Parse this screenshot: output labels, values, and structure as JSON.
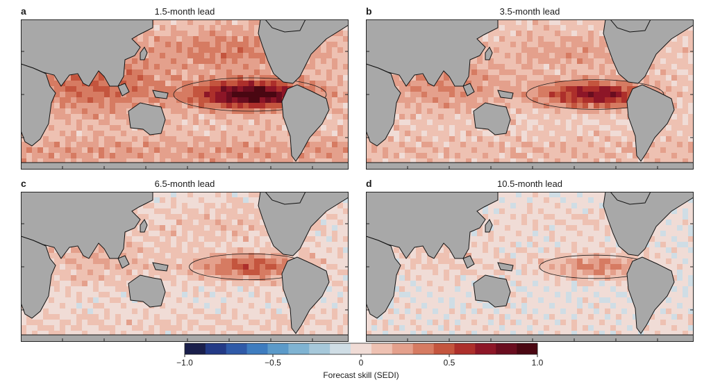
{
  "figure": {
    "panels": [
      {
        "letter": "a",
        "title": "1.5-month lead",
        "intensity": 1.0
      },
      {
        "letter": "b",
        "title": "3.5-month lead",
        "intensity": 0.78
      },
      {
        "letter": "c",
        "title": "6.5-month lead",
        "intensity": 0.55
      },
      {
        "letter": "d",
        "title": "10.5-month lead",
        "intensity": 0.4
      }
    ]
  },
  "chart_data": {
    "type": "heatmap",
    "colorbar": {
      "label": "Forecast skill (SEDI)",
      "min": -1.0,
      "max": 1.0,
      "ticks": [
        -1.0,
        -0.5,
        0,
        0.5,
        1.0
      ],
      "tick_labels": [
        "−1.0",
        "−0.5",
        "0",
        "0.5",
        "1.0"
      ],
      "colors": [
        "#1a1f4b",
        "#233a86",
        "#2f5aa8",
        "#3e7cbf",
        "#5b9ac9",
        "#7fb3d2",
        "#a6c8da",
        "#cfdde5",
        "#f0dcd6",
        "#eec1b2",
        "#e4a08c",
        "#d67b62",
        "#c4553e",
        "#ad2f2b",
        "#8d1627",
        "#6a0d1f",
        "#4a0712"
      ]
    },
    "land_color": "#a8a8a8"
  }
}
